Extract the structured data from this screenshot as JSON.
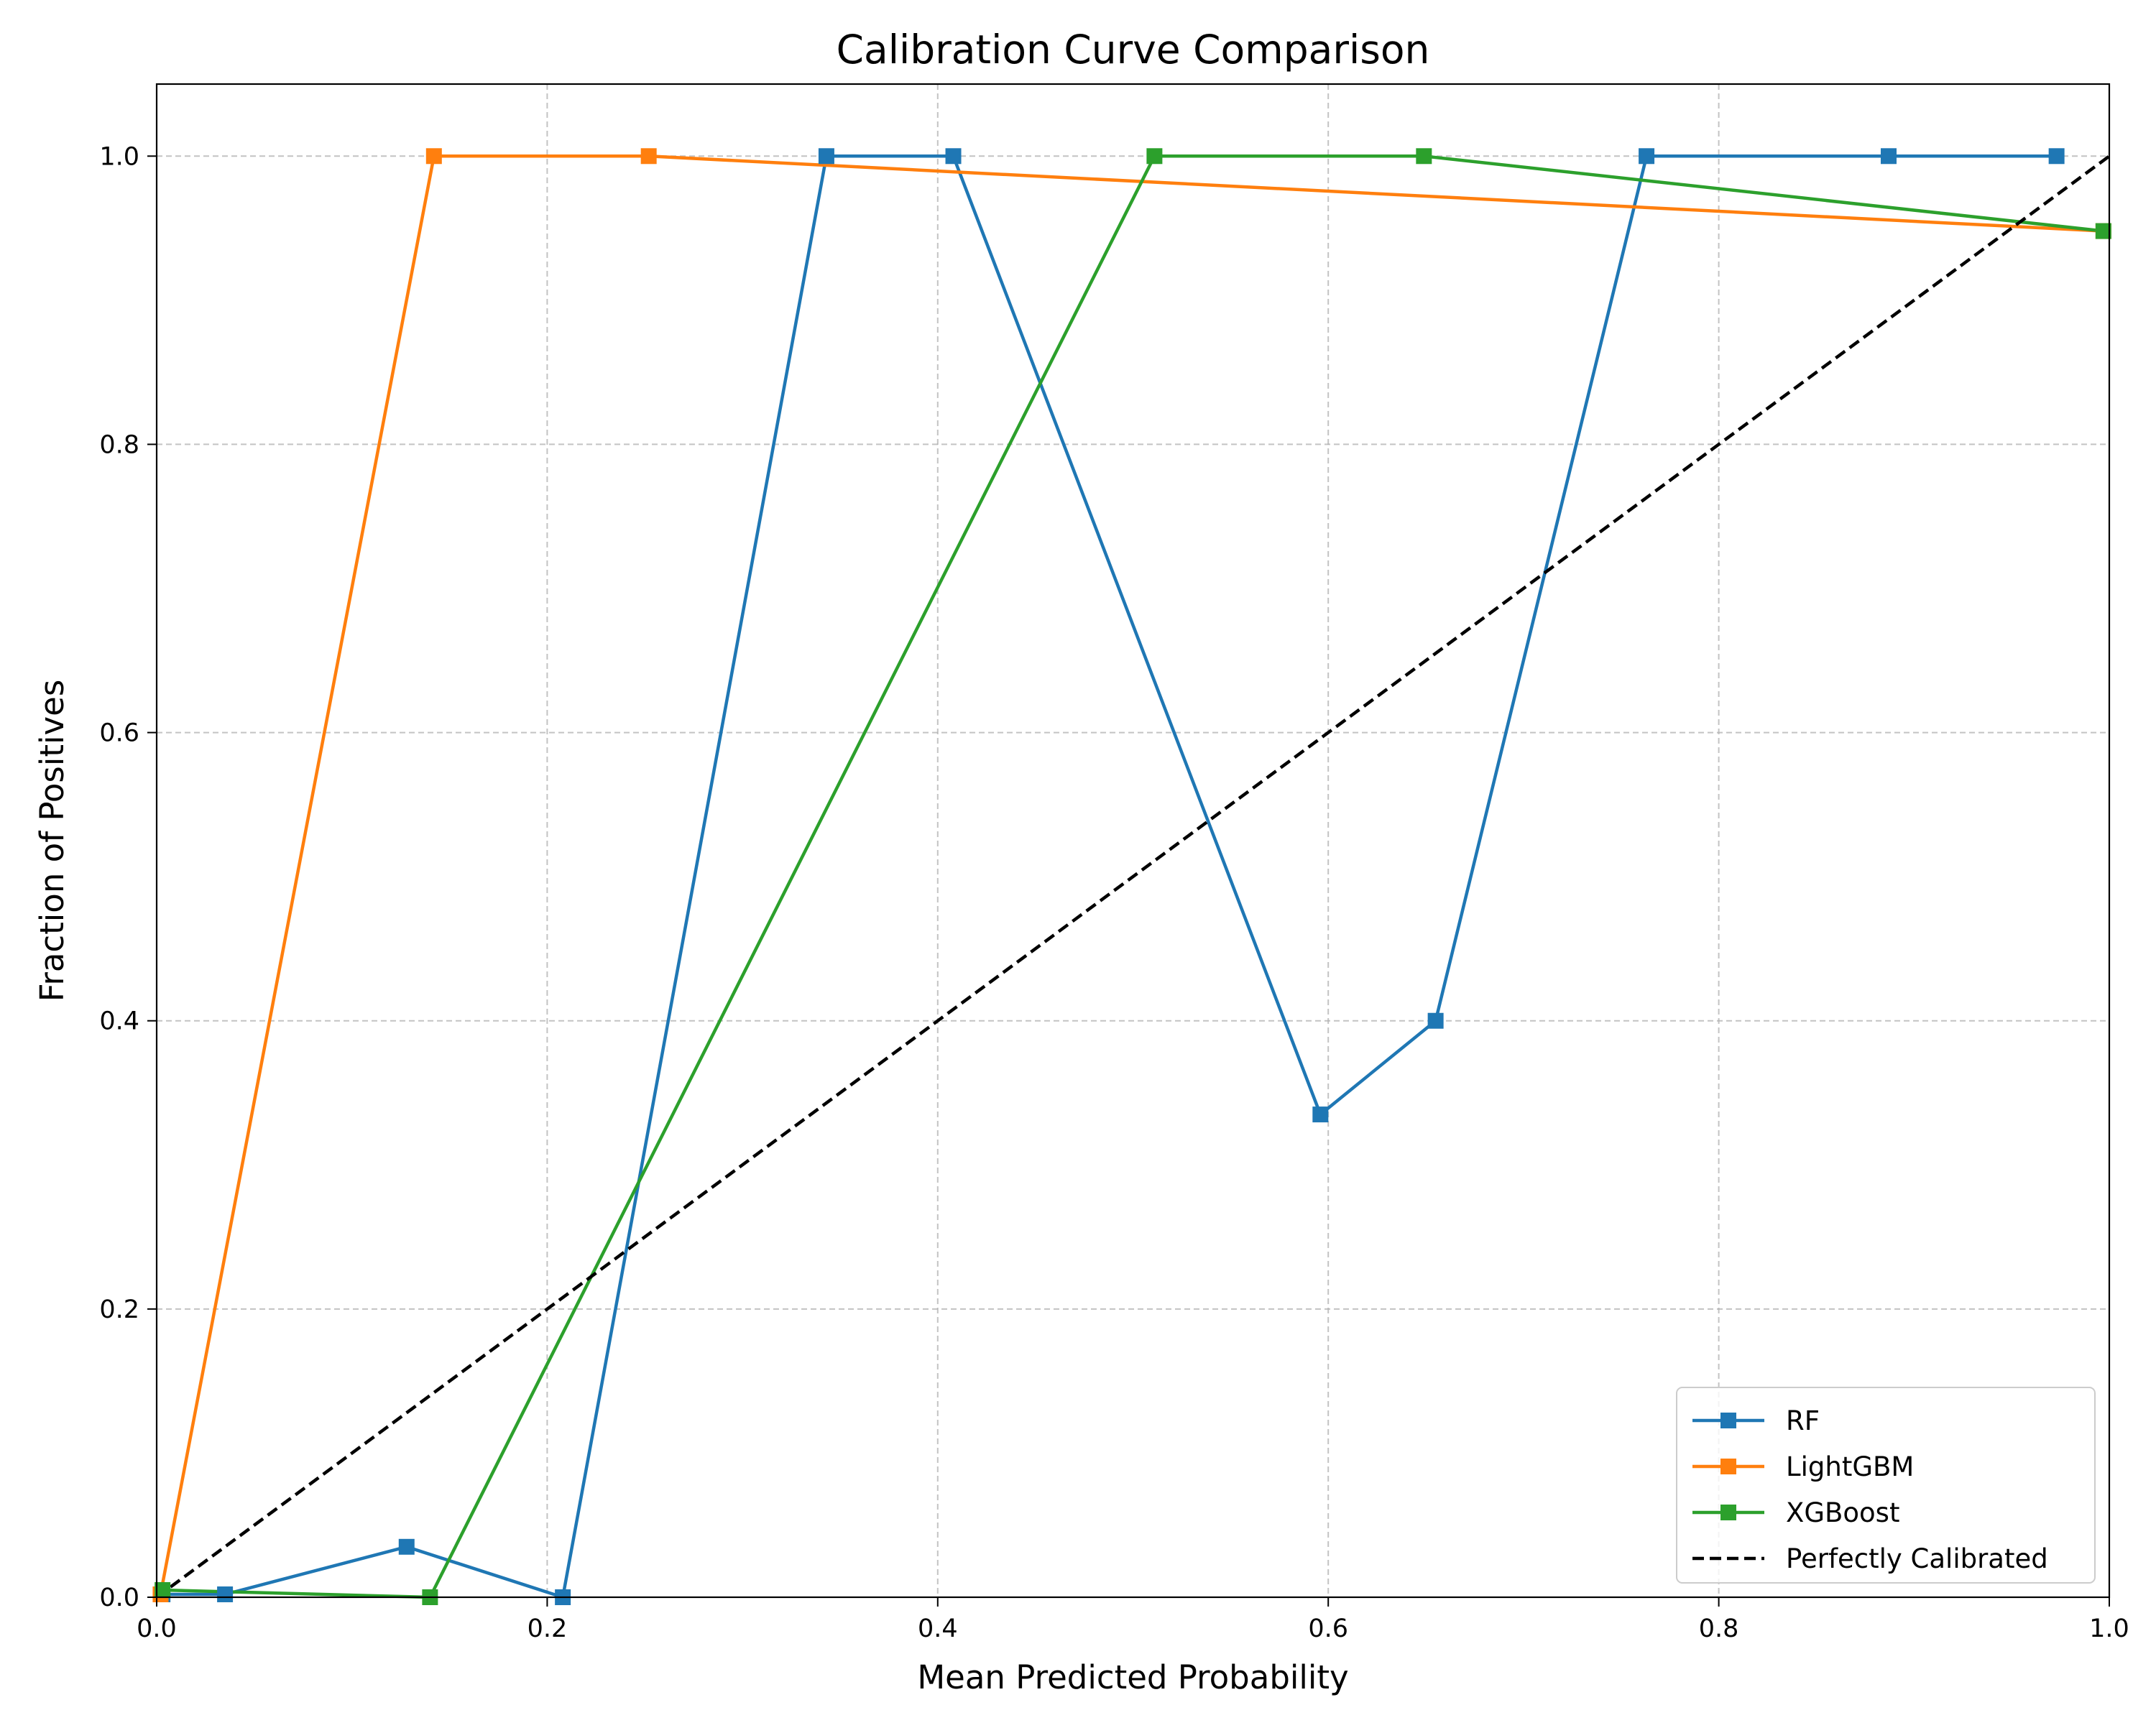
{
  "chart_data": {
    "type": "line",
    "title": "Calibration Curve Comparison",
    "xlabel": "Mean Predicted Probability",
    "ylabel": "Fraction of Positives",
    "xlim": [
      0,
      1
    ],
    "ylim": [
      0,
      1.05
    ],
    "xticks": [
      0.0,
      0.2,
      0.4,
      0.6,
      0.8,
      1.0
    ],
    "xtick_labels": [
      "0.0",
      "0.2",
      "0.4",
      "0.6",
      "0.8",
      "1.0"
    ],
    "yticks": [
      0.0,
      0.2,
      0.4,
      0.6,
      0.8,
      1.0
    ],
    "ytick_labels": [
      "0.0",
      "0.2",
      "0.4",
      "0.6",
      "0.8",
      "1.0"
    ],
    "grid": true,
    "legend_position": "lower-right",
    "series": [
      {
        "name": "RF",
        "color": "#1f77b4",
        "marker": "square",
        "line_style": "solid",
        "x": [
          0.003,
          0.035,
          0.128,
          0.208,
          0.343,
          0.408,
          0.596,
          0.655,
          0.763,
          0.887,
          0.973
        ],
        "y": [
          0.002,
          0.002,
          0.035,
          0.0,
          1.0,
          1.0,
          0.335,
          0.4,
          1.0,
          1.0,
          1.0
        ]
      },
      {
        "name": "LightGBM",
        "color": "#ff7f0e",
        "marker": "square",
        "line_style": "solid",
        "x": [
          0.002,
          0.142,
          0.252,
          0.997
        ],
        "y": [
          0.002,
          1.0,
          1.0,
          0.948
        ]
      },
      {
        "name": "XGBoost",
        "color": "#2ca02c",
        "marker": "square",
        "line_style": "solid",
        "x": [
          0.003,
          0.14,
          0.511,
          0.649,
          0.997
        ],
        "y": [
          0.005,
          0.0,
          1.0,
          1.0,
          0.948
        ]
      },
      {
        "name": "Perfectly Calibrated",
        "color": "#000000",
        "marker": "none",
        "line_style": "dashed",
        "x": [
          0,
          1
        ],
        "y": [
          0,
          1
        ]
      }
    ]
  }
}
